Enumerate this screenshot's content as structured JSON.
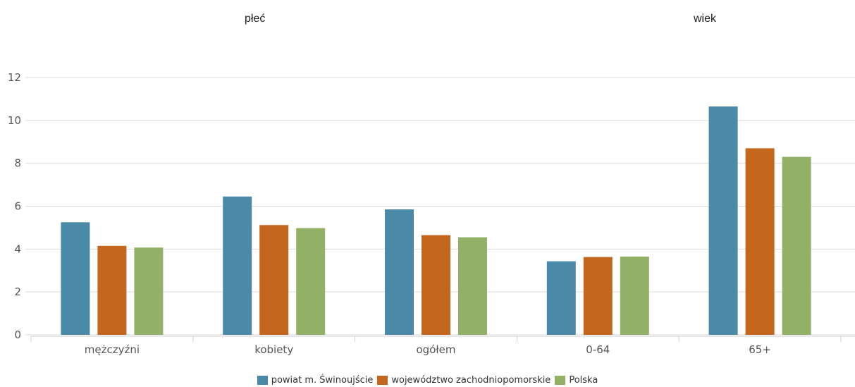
{
  "group_titles": {
    "left": "płeć",
    "right": "wiek"
  },
  "chart_data": {
    "type": "bar",
    "categories": [
      "mężczyźni",
      "kobiety",
      "ogółem",
      "0-64",
      "65+"
    ],
    "series": [
      {
        "name": "powiat m. Świnoujście",
        "color": "#4a8aa8",
        "values": [
          5.25,
          6.45,
          5.85,
          3.43,
          10.65
        ]
      },
      {
        "name": "województwo zachodniopomorskie",
        "color": "#c5661f",
        "values": [
          4.15,
          5.12,
          4.65,
          3.63,
          8.7
        ]
      },
      {
        "name": "Polska",
        "color": "#93b166",
        "values": [
          4.07,
          4.98,
          4.55,
          3.65,
          8.3
        ]
      }
    ],
    "ylim": [
      0,
      12
    ],
    "yticks": [
      0,
      2,
      4,
      6,
      8,
      10,
      12
    ],
    "grid": true,
    "legend_position": "bottom-center"
  }
}
